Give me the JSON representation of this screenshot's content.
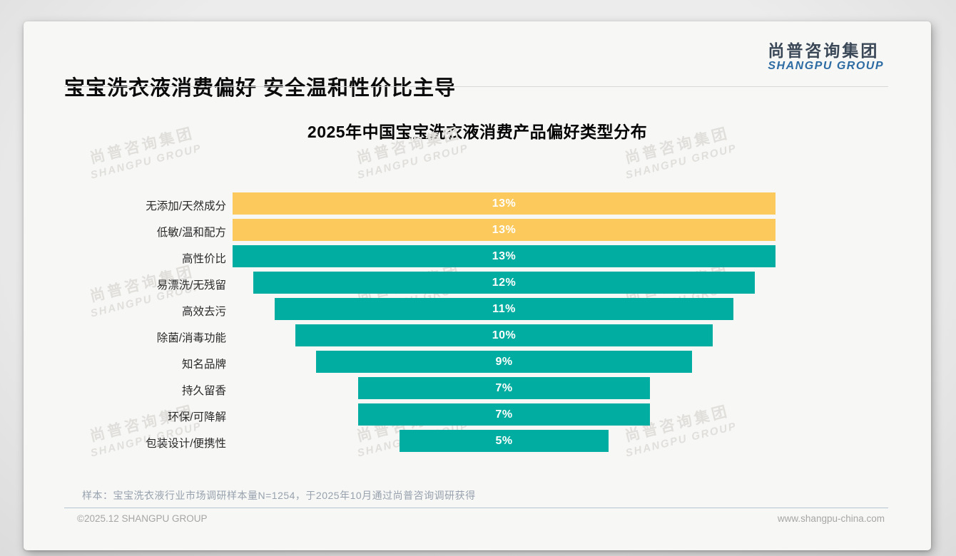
{
  "page": {
    "title": "宝宝洗衣液消费偏好 安全温和性价比主导",
    "logo": {
      "cn": "尚普咨询集团",
      "en": "SHANGPU GROUP"
    },
    "watermark": {
      "cn": "尚普咨询集团",
      "en": "SHANGPU GROUP"
    },
    "footnote": "样本：宝宝洗衣液行业市场调研样本量N=1254，于2025年10月通过尚普咨询调研获得",
    "footer": {
      "left": "©2025.12 SHANGPU GROUP",
      "right": "www.shangpu-china.com"
    }
  },
  "chart_data": {
    "type": "bar",
    "subtype": "centered-funnel",
    "orientation": "horizontal",
    "title": "2025年中国宝宝洗衣液消费产品偏好类型分布",
    "categories": [
      "无添加/天然成分",
      "低敏/温和配方",
      "高性价比",
      "易漂洗/无残留",
      "高效去污",
      "除菌/消毒功能",
      "知名品牌",
      "持久留香",
      "环保/可降解",
      "包装设计/便携性"
    ],
    "values": [
      13,
      13,
      13,
      12,
      11,
      10,
      9,
      7,
      7,
      5
    ],
    "labels": [
      "13%",
      "13%",
      "13%",
      "12%",
      "11%",
      "10%",
      "9%",
      "7%",
      "7%",
      "5%"
    ],
    "unit": "%",
    "max_value": 13,
    "highlight_count": 2,
    "colors": {
      "highlight": "#FBC95C",
      "default": "#01ADA0",
      "value_text": "#FFFFFF"
    },
    "legend": false,
    "grid": false
  }
}
